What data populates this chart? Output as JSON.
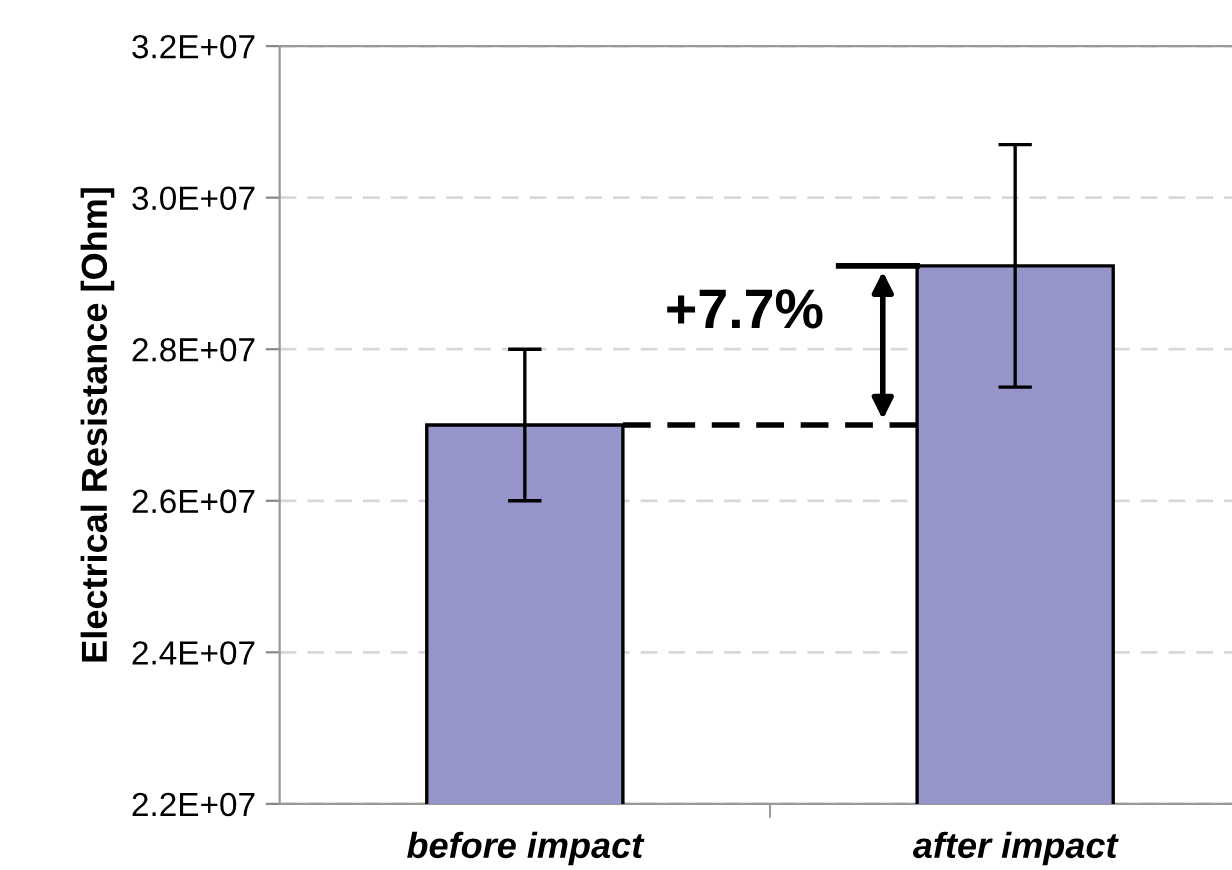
{
  "chart_data": {
    "type": "bar",
    "ylabel": "Electrical Resistance [Ohm]",
    "categories": [
      "before impact",
      "after impact"
    ],
    "values": [
      27000000,
      29100000
    ],
    "errors": [
      1000000,
      1600000
    ],
    "color": "#9595c9",
    "ylim": [
      22000000,
      32000000
    ],
    "yticks": [
      {
        "value": 22000000,
        "label": "2.2E+07"
      },
      {
        "value": 24000000,
        "label": "2.4E+07"
      },
      {
        "value": 26000000,
        "label": "2.6E+07"
      },
      {
        "value": 28000000,
        "label": "2.8E+07"
      },
      {
        "value": 30000000,
        "label": "3.0E+07"
      },
      {
        "value": 32000000,
        "label": "3.2E+07"
      }
    ],
    "grid": "y",
    "annotations": [
      "+7.7%"
    ]
  }
}
